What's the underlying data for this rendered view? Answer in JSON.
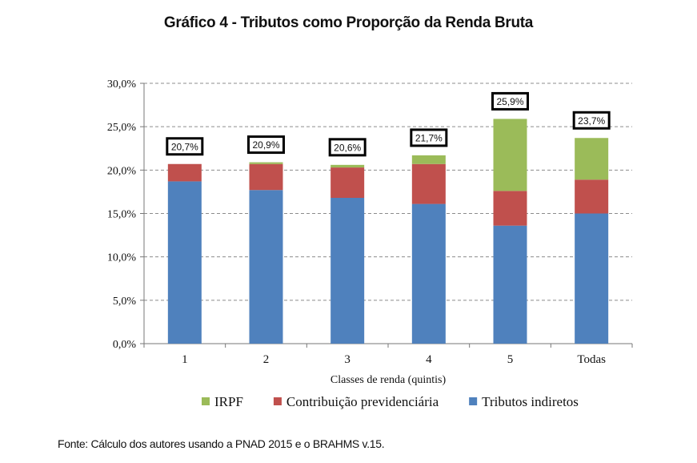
{
  "chart_data": {
    "type": "bar",
    "stacked": true,
    "title": "Gráfico 4 - Tributos como Proporção da Renda Bruta",
    "xlabel": "Classes de renda (quintis)",
    "ylabel": "",
    "categories": [
      "1",
      "2",
      "3",
      "4",
      "5",
      "Todas"
    ],
    "ylim": [
      0,
      30
    ],
    "yticks": [
      0,
      5,
      10,
      15,
      20,
      25,
      30
    ],
    "ytick_labels": [
      "0,0%",
      "5,0%",
      "10,0%",
      "15,0%",
      "20,0%",
      "25,0%",
      "30,0%"
    ],
    "grid": true,
    "legend_position": "bottom",
    "series": [
      {
        "name": "Tributos indiretos",
        "color": "#4f81bd",
        "values": [
          18.7,
          17.7,
          16.8,
          16.1,
          13.6,
          15.0
        ]
      },
      {
        "name": "Contribuição previdenciária",
        "color": "#c0504d",
        "values": [
          2.0,
          3.0,
          3.5,
          4.6,
          4.0,
          3.9
        ]
      },
      {
        "name": "IRPF",
        "color": "#9bbb59",
        "values": [
          0.0,
          0.2,
          0.3,
          1.0,
          8.3,
          4.8
        ]
      }
    ],
    "total_labels": [
      "20,7%",
      "20,9%",
      "20,6%",
      "21,7%",
      "25,9%",
      "23,7%"
    ]
  },
  "legend_order": [
    "IRPF",
    "Contribuição previdenciária",
    "Tributos indiretos"
  ],
  "source": "Fonte: Cálculo dos autores usando a PNAD 2015 e o BRAHMS v.15."
}
